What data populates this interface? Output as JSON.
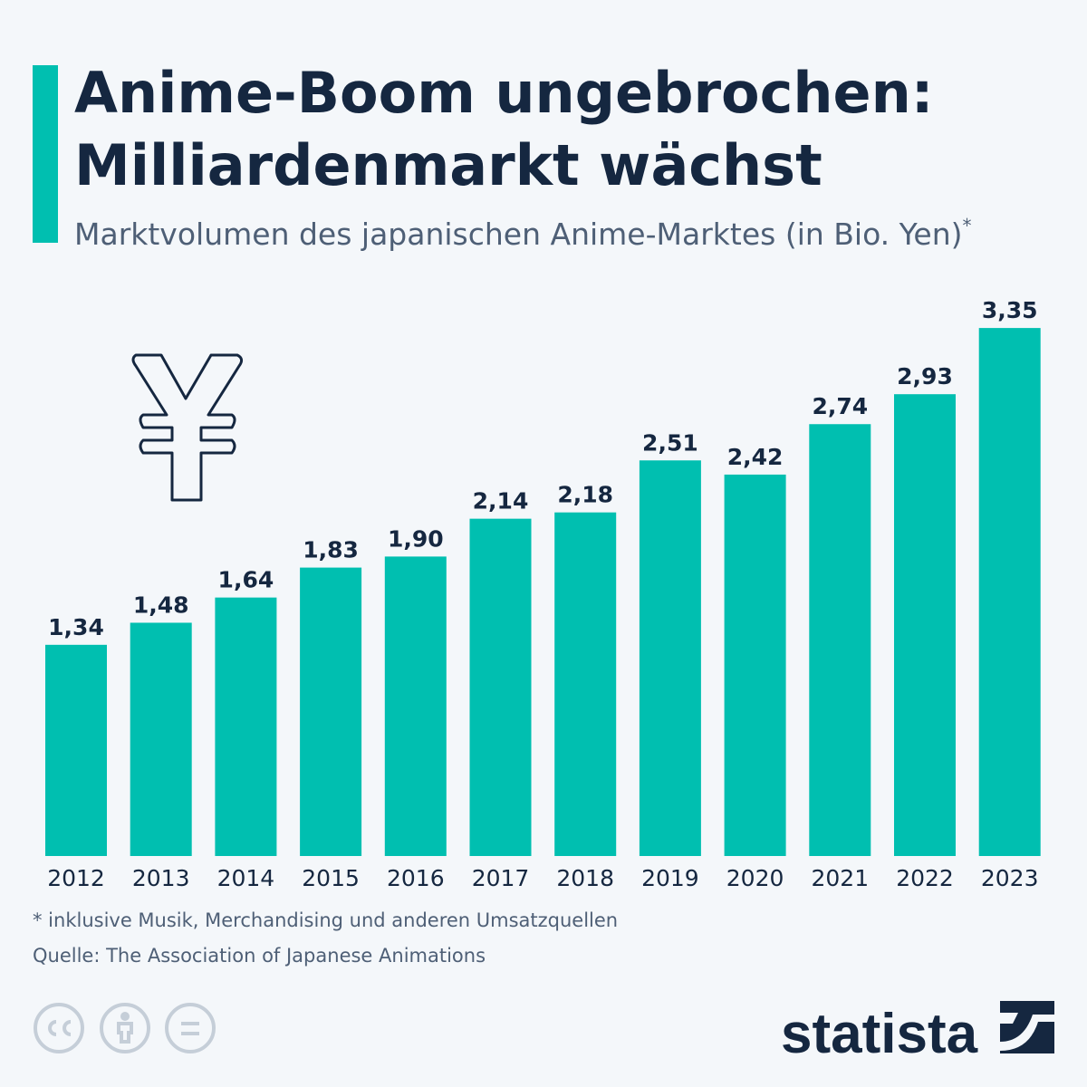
{
  "chart_data": {
    "type": "bar",
    "title": [
      "Anime-Boom ungebrochen:",
      "Milliardenmarkt wächst"
    ],
    "subtitle": "Marktvolumen des japanischen Anime-Marktes (in Bio. Yen)",
    "subtitle_note": "*",
    "categories": [
      "2012",
      "2013",
      "2014",
      "2015",
      "2016",
      "2017",
      "2018",
      "2019",
      "2020",
      "2021",
      "2022",
      "2023"
    ],
    "values": [
      1.34,
      1.48,
      1.64,
      1.83,
      1.9,
      2.14,
      2.18,
      2.51,
      2.42,
      2.74,
      2.93,
      3.35
    ],
    "value_labels": [
      "1,34",
      "1,48",
      "1,64",
      "1,83",
      "1,90",
      "2,14",
      "2,18",
      "2,51",
      "2,42",
      "2,74",
      "2,93",
      "3,35"
    ],
    "color": "#00bfb0",
    "footnote": "* inklusive Musik, Merchandising und anderen Umsatzquellen",
    "source": "Quelle: The Association of Japanese Animations",
    "brand": "statista"
  }
}
